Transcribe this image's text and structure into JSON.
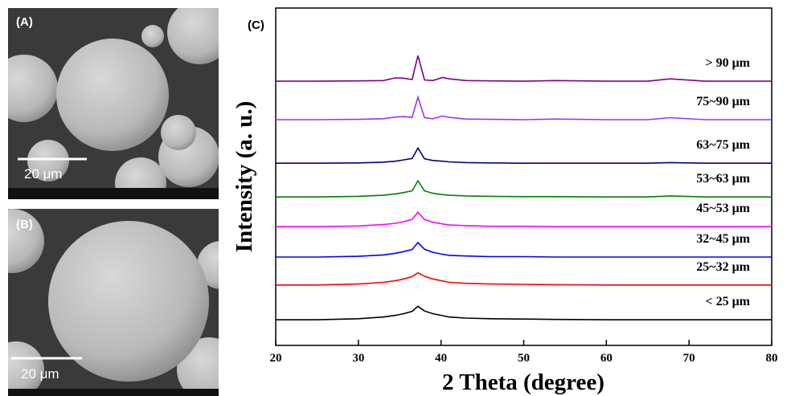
{
  "panels": [
    {
      "label": "(A)",
      "scale": "20 μm"
    },
    {
      "label": "(B)",
      "scale": "20 μm"
    }
  ],
  "chart_data": {
    "type": "line",
    "panel_label": "(C)",
    "x_label": "2 Theta (degree)",
    "y_label": "Intensity (a. u.)",
    "x": [
      20,
      25,
      30,
      33,
      34.5,
      35.5,
      36.5,
      37.2,
      38,
      39,
      40.2,
      41,
      43,
      46,
      50,
      54,
      60,
      65,
      67.7,
      72,
      76,
      80
    ],
    "xlim": [
      20,
      80
    ],
    "xticks": [
      20,
      30,
      40,
      50,
      60,
      70,
      80
    ],
    "ylim": [
      0,
      100
    ],
    "series": [
      {
        "name": "< 25 μm",
        "color": "#000000",
        "values": [
          7.6,
          7.6,
          7.9,
          8.4,
          8.9,
          9.4,
          10.1,
          11.6,
          10.2,
          9.4,
          8.8,
          8.4,
          8.1,
          7.9,
          7.8,
          7.7,
          7.6,
          7.6,
          7.6,
          7.6,
          7.6,
          7.6
        ]
      },
      {
        "name": "25~32 μm",
        "color": "#ff0000",
        "values": [
          17.9,
          17.9,
          18.2,
          18.7,
          19.2,
          19.7,
          20.4,
          21.5,
          20.5,
          19.7,
          19.1,
          18.7,
          18.4,
          18.2,
          18.1,
          18.0,
          17.9,
          17.9,
          17.9,
          17.9,
          17.9,
          17.9
        ]
      },
      {
        "name": "32~45 μm",
        "color": "#0000ff",
        "values": [
          26.2,
          26.2,
          26.4,
          26.8,
          27.3,
          27.8,
          28.4,
          30.5,
          28.5,
          27.6,
          27.0,
          26.7,
          26.5,
          26.3,
          26.3,
          26.2,
          26.2,
          26.2,
          26.2,
          26.2,
          26.2,
          26.2
        ]
      },
      {
        "name": "45~53 μm",
        "color": "#ff00ff",
        "values": [
          35.2,
          35.2,
          35.4,
          35.8,
          36.2,
          36.7,
          37.3,
          39.5,
          37.3,
          36.5,
          36.0,
          35.7,
          35.5,
          35.3,
          35.3,
          35.2,
          35.2,
          35.2,
          35.2,
          35.2,
          35.2,
          35.2
        ]
      },
      {
        "name": "53~63 μm",
        "color": "#008000",
        "values": [
          44.0,
          44.0,
          44.2,
          44.5,
          44.9,
          45.3,
          45.8,
          48.8,
          45.8,
          45.1,
          44.7,
          44.5,
          44.3,
          44.2,
          44.1,
          44.1,
          44.0,
          44.0,
          44.3,
          44.0,
          44.0,
          44.0
        ]
      },
      {
        "name": "63~75 μm",
        "color": "#000080",
        "values": [
          54.0,
          54.0,
          54.1,
          54.3,
          54.6,
          55.0,
          55.4,
          58.5,
          55.3,
          54.8,
          54.6,
          54.4,
          54.2,
          54.1,
          54.0,
          54.0,
          54.0,
          54.0,
          54.2,
          54.0,
          54.0,
          54.0
        ]
      },
      {
        "name": "75~90 μm",
        "color": "#9933ff",
        "values": [
          66.9,
          66.9,
          67.0,
          67.2,
          67.7,
          67.8,
          67.6,
          73.6,
          67.5,
          67.2,
          68.0,
          67.6,
          67.1,
          67.0,
          66.9,
          67.1,
          66.9,
          66.9,
          67.5,
          66.9,
          66.9,
          66.9
        ]
      },
      {
        "name": "> 90 μm",
        "color": "#800080",
        "values": [
          78.3,
          78.3,
          78.4,
          78.5,
          79.3,
          79.2,
          78.8,
          85.9,
          78.7,
          78.5,
          79.4,
          79.0,
          78.5,
          78.4,
          78.3,
          78.5,
          78.3,
          78.3,
          79.0,
          78.3,
          78.3,
          78.3
        ]
      }
    ]
  }
}
